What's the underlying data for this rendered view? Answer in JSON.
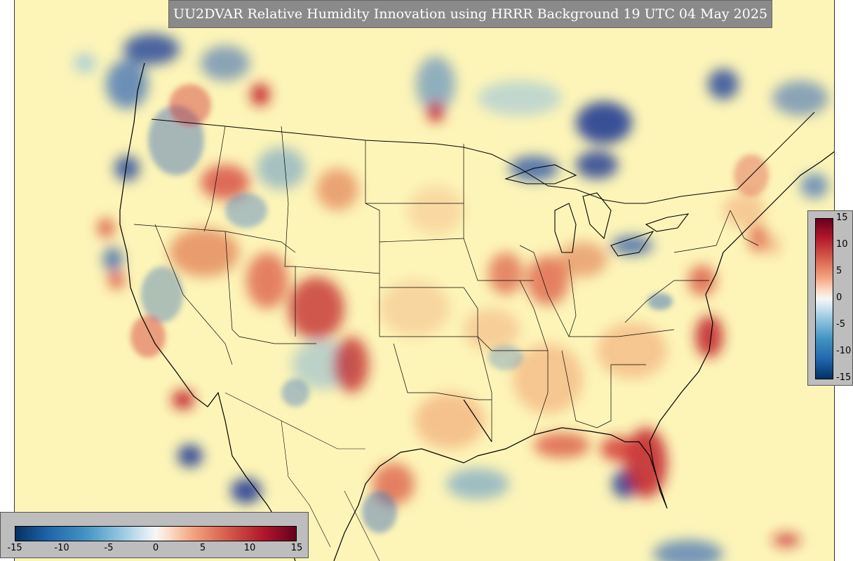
{
  "title": "UU2DVAR Relative Humidity Innovation using HRRR Background 19 UTC 04 May 2025",
  "colorbar": {
    "min": -15,
    "max": 15,
    "right_ticks": [
      "15",
      "10",
      "5",
      "0",
      "-5",
      "-10",
      "-15"
    ],
    "bottom_ticks": [
      "-15",
      "-10",
      "-5",
      "0",
      "5",
      "10",
      "15"
    ],
    "colors": {
      "strong_negative": "#053061",
      "negative": "#4393c3",
      "neutral": "#f7f7f7",
      "positive": "#f4a582",
      "strong_positive": "#b2182b",
      "background_field": "#fdf5b8"
    }
  }
}
